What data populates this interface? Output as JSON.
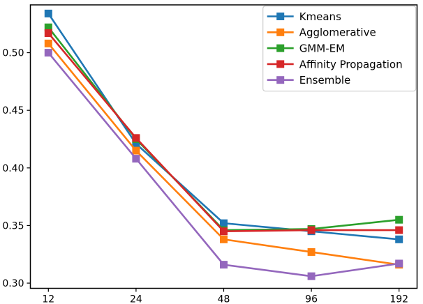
{
  "chart_data": {
    "type": "line",
    "title": "",
    "xlabel": "",
    "ylabel": "",
    "x_categories": [
      "12",
      "24",
      "48",
      "96",
      "192"
    ],
    "x_scale_note": "categories equally spaced (values double each step)",
    "y_ticks": [
      0.3,
      0.35,
      0.4,
      0.45,
      0.5
    ],
    "y_tick_labels": [
      "0.30",
      "0.35",
      "0.40",
      "0.45",
      "0.50"
    ],
    "ylim": [
      0.2955,
      0.5415
    ],
    "grid": false,
    "marker": "square",
    "legend_position": "upper right",
    "background_color": "#ffffff",
    "spine_color": "#000000",
    "legend_border_color": "#cccccc",
    "series": [
      {
        "name": "Kmeans",
        "color": "#1f77b4",
        "values": [
          0.534,
          0.421,
          0.352,
          0.345,
          0.338
        ]
      },
      {
        "name": "Agglomerative",
        "color": "#ff7f0e",
        "values": [
          0.508,
          0.415,
          0.338,
          0.327,
          0.316
        ]
      },
      {
        "name": "GMM-EM",
        "color": "#2ca02c",
        "values": [
          0.522,
          0.425,
          0.346,
          0.347,
          0.355
        ]
      },
      {
        "name": "Affinity Propagation",
        "color": "#d62728",
        "values": [
          0.517,
          0.426,
          0.345,
          0.346,
          0.346
        ]
      },
      {
        "name": "Ensemble",
        "color": "#9467bd",
        "values": [
          0.5,
          0.408,
          0.316,
          0.306,
          0.317
        ]
      }
    ]
  }
}
